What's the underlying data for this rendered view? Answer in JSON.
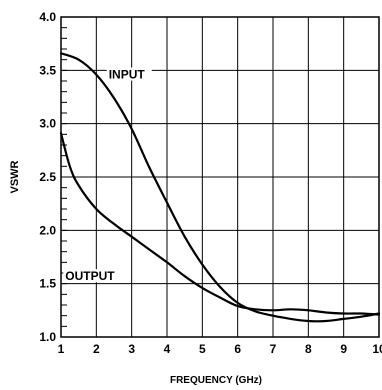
{
  "chart_data": {
    "type": "line",
    "title": "",
    "xlabel": "FREQUENCY (GHz)",
    "ylabel": "VSWR",
    "xlim": [
      1,
      10
    ],
    "ylim": [
      1.0,
      4.0
    ],
    "x_ticks": [
      1,
      2,
      3,
      4,
      5,
      6,
      7,
      8,
      9,
      10
    ],
    "x_tick_labels": [
      "1",
      "2",
      "3",
      "4",
      "5",
      "6",
      "7",
      "8",
      "9",
      "10"
    ],
    "y_ticks": [
      1.0,
      1.5,
      2.0,
      2.5,
      3.0,
      3.5,
      4.0
    ],
    "y_tick_labels": [
      "1.0",
      "1.5",
      "2.0",
      "2.5",
      "3.0",
      "3.5",
      "4.0"
    ],
    "grid": true,
    "legend": "none",
    "series": [
      {
        "name": "INPUT",
        "x": [
          1,
          1.5,
          2,
          2.5,
          3,
          3.5,
          4,
          4.5,
          5,
          5.5,
          6,
          6.5,
          7,
          7.5,
          8,
          8.5,
          9,
          9.5,
          10
        ],
        "y": [
          3.66,
          3.6,
          3.46,
          3.24,
          2.95,
          2.59,
          2.26,
          1.94,
          1.68,
          1.47,
          1.32,
          1.24,
          1.2,
          1.17,
          1.15,
          1.15,
          1.17,
          1.19,
          1.22
        ]
      },
      {
        "name": "OUTPUT",
        "x": [
          1,
          1.25,
          1.5,
          2,
          2.5,
          3,
          3.5,
          4,
          4.5,
          5,
          5.5,
          6,
          6.5,
          7,
          7.5,
          8,
          8.5,
          9,
          9.5,
          10
        ],
        "y": [
          2.91,
          2.6,
          2.42,
          2.2,
          2.06,
          1.94,
          1.82,
          1.7,
          1.57,
          1.46,
          1.37,
          1.29,
          1.26,
          1.25,
          1.26,
          1.25,
          1.23,
          1.22,
          1.22,
          1.21
        ]
      }
    ]
  }
}
